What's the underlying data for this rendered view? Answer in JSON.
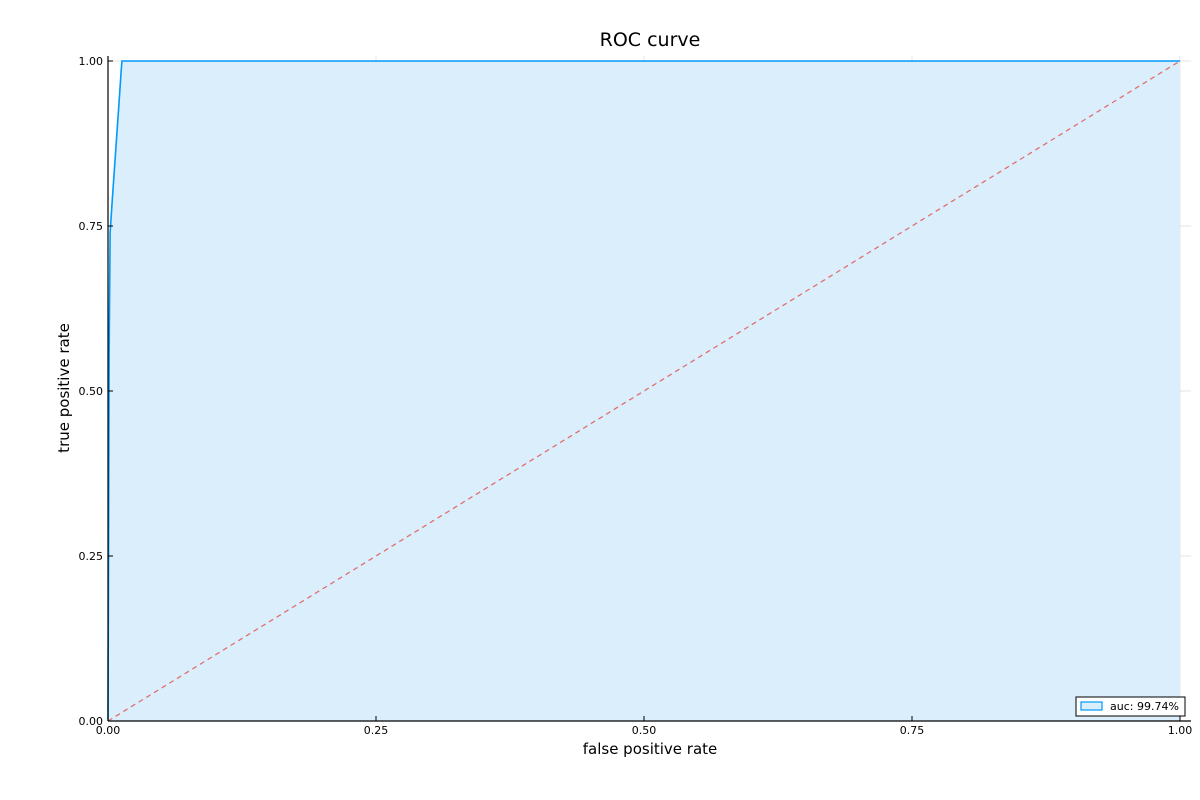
{
  "chart_data": {
    "type": "area",
    "title": "ROC curve",
    "xlabel": "false positive rate",
    "ylabel": "true positive rate",
    "xlim": [
      0,
      1
    ],
    "ylim": [
      0,
      1
    ],
    "xticks": [
      0,
      0.25,
      0.5,
      0.75,
      1.0
    ],
    "yticks": [
      0,
      0.25,
      0.5,
      0.75,
      1.0
    ],
    "xtick_labels": [
      "0.00",
      "0.25",
      "0.50",
      "0.75",
      "1.00"
    ],
    "ytick_labels": [
      "0.00",
      "0.25",
      "0.50",
      "0.75",
      "1.00"
    ],
    "grid": true,
    "legend_position": "bottom-right",
    "series": [
      {
        "name": "auc: 99.74%",
        "style": "solid",
        "filled": true,
        "color": "#009AFA",
        "fill_color": "#DAEEFC",
        "x": [
          0,
          0.0005,
          0.001,
          0.002,
          0.004,
          0.007,
          0.01,
          0.0125,
          0.013,
          0.5,
          1.0
        ],
        "y": [
          0,
          0.26,
          0.55,
          0.74,
          0.79,
          0.86,
          0.93,
          0.99,
          1.0,
          1.0,
          1.0
        ]
      },
      {
        "style": "dashed",
        "filled": false,
        "color": "#E26F6F",
        "x": [
          0,
          1
        ],
        "y": [
          0,
          1
        ]
      }
    ]
  }
}
